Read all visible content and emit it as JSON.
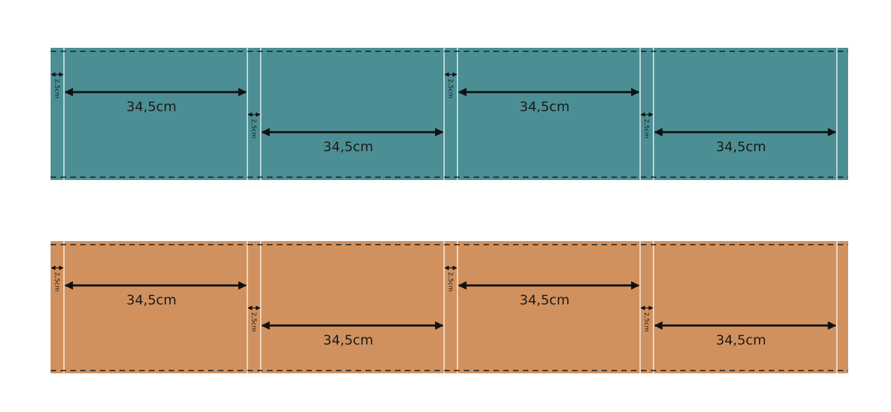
{
  "strips": [
    {
      "name": "teal-strip",
      "color": "#4b8f94",
      "dims": [
        {
          "label": "34,5cm",
          "gap_label": "2,5cm"
        },
        {
          "label": "34,5cm",
          "gap_label": "2,5cm"
        },
        {
          "label": "34,5cm",
          "gap_label": "2,5cm"
        },
        {
          "label": "34,5cm",
          "gap_label": "2,5cm"
        }
      ]
    },
    {
      "name": "orange-strip",
      "color": "#d1915e",
      "dims": [
        {
          "label": "34,5cm",
          "gap_label": "2,5cm"
        },
        {
          "label": "34,5cm",
          "gap_label": "2,5cm"
        },
        {
          "label": "34,5cm",
          "gap_label": "2,5cm"
        },
        {
          "label": "34,5cm",
          "gap_label": "2,5cm"
        }
      ]
    }
  ],
  "colors": {
    "fold_line": "#1a1a1a",
    "cut_line": "#ffffff",
    "arrow": "#111111"
  }
}
